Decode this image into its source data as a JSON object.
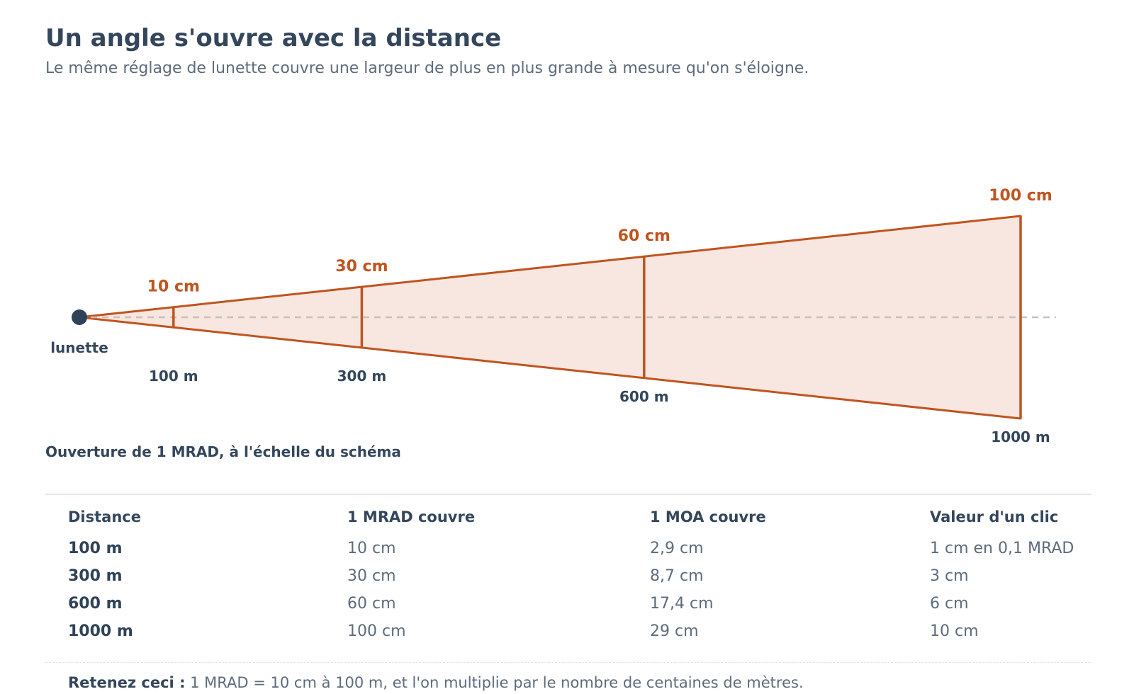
{
  "header": {
    "title": "Un angle s'ouvre avec la distance",
    "subtitle": "Le même réglage de lunette couvre une largeur de plus en plus grande à mesure qu'on s'éloigne."
  },
  "diagram": {
    "origin_label": "lunette",
    "max_distance_m": 1000,
    "angle_mrad": 1,
    "markers": [
      {
        "distance_m": 100,
        "width_cm": 10,
        "width_label": "10 cm",
        "distance_label": "100 m"
      },
      {
        "distance_m": 300,
        "width_cm": 30,
        "width_label": "30 cm",
        "distance_label": "300 m"
      },
      {
        "distance_m": 600,
        "width_cm": 60,
        "width_label": "60 cm",
        "distance_label": "600 m"
      },
      {
        "distance_m": 1000,
        "width_cm": 100,
        "width_label": "100 cm",
        "distance_label": "1000 m"
      }
    ],
    "caption": "Ouverture de 1 MRAD, à l'échelle du schéma",
    "colors": {
      "accent": "#c0541f",
      "fill": "#f8e7e0",
      "origin": "#2f4257",
      "axis": "#c9bfbb"
    }
  },
  "table": {
    "headers": [
      "Distance",
      "1 MRAD couvre",
      "1 MOA couvre",
      "Valeur d'un clic"
    ],
    "rows": [
      [
        "100 m",
        "10 cm",
        "2,9 cm",
        "1 cm en 0,1 MRAD"
      ],
      [
        "300 m",
        "30 cm",
        "8,7 cm",
        "3 cm"
      ],
      [
        "600 m",
        "60 cm",
        "17,4 cm",
        "6 cm"
      ],
      [
        "1000 m",
        "100 cm",
        "29 cm",
        "10 cm"
      ]
    ]
  },
  "footnote": {
    "lead": "Retenez ceci :",
    "text": " 1 MRAD = 10 cm à 100 m, et l'on multiplie par le nombre de centaines de mètres."
  }
}
